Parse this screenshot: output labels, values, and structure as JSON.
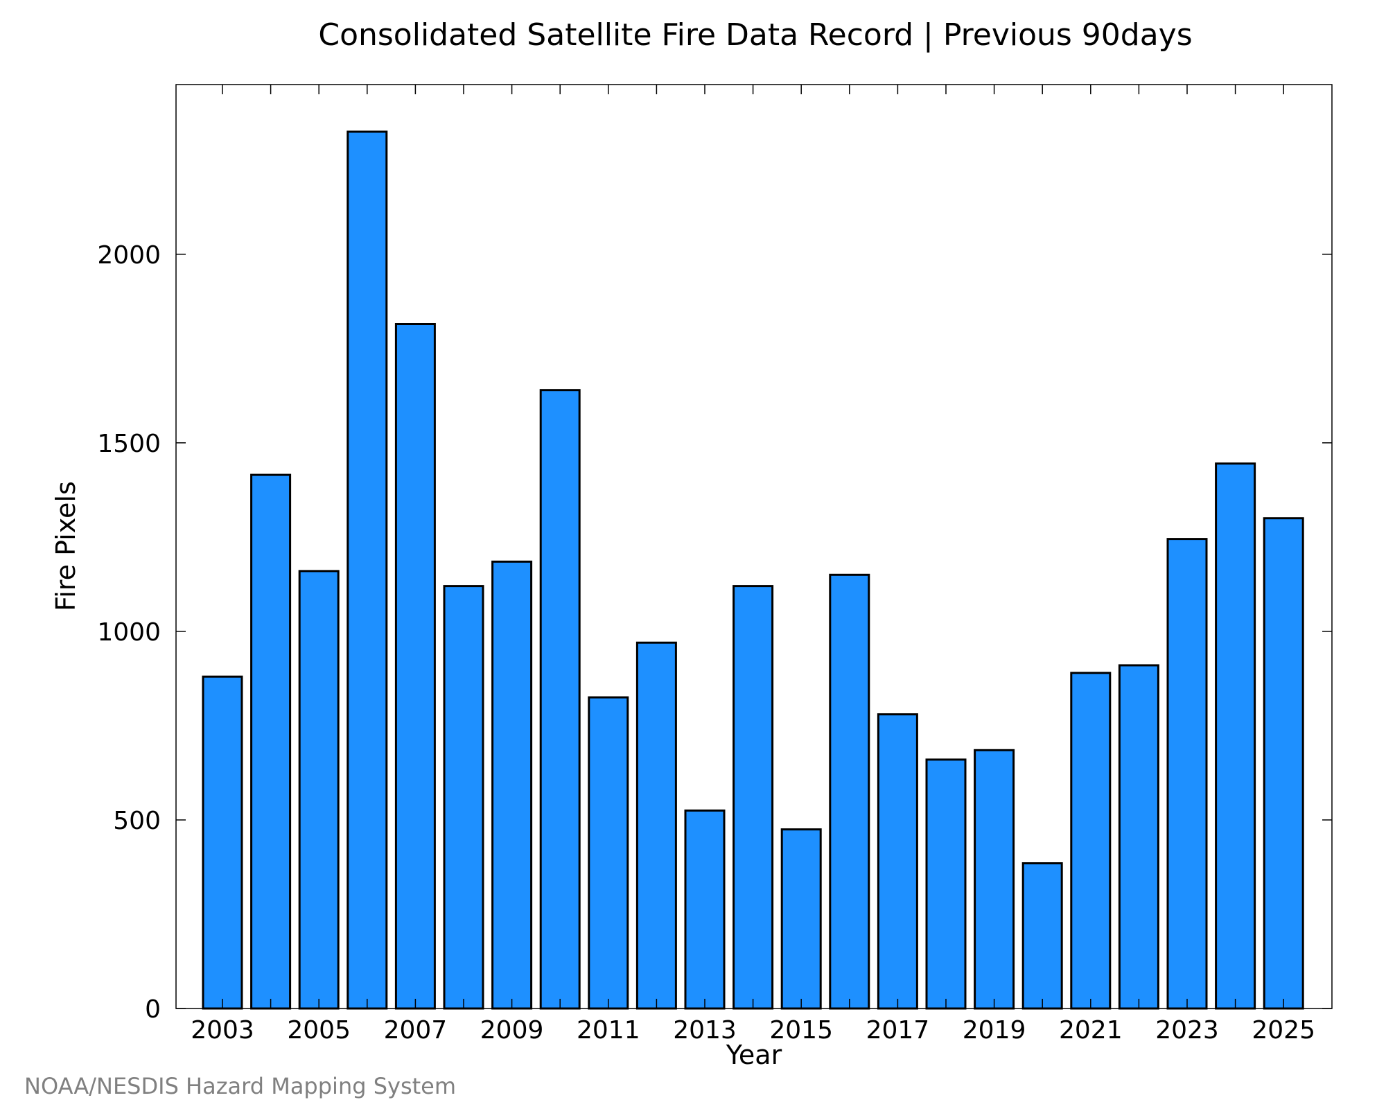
{
  "chart_data": {
    "type": "bar",
    "title": "Consolidated Satellite Fire Data Record | Previous 90days",
    "xlabel": "Year",
    "ylabel": "Fire Pixels",
    "categories": [
      "2003",
      "2004",
      "2005",
      "2006",
      "2007",
      "2008",
      "2009",
      "2010",
      "2011",
      "2012",
      "2013",
      "2014",
      "2015",
      "2016",
      "2017",
      "2018",
      "2019",
      "2020",
      "2021",
      "2022",
      "2023",
      "2024",
      "2025"
    ],
    "values": [
      880,
      1415,
      1160,
      2325,
      1815,
      1120,
      1185,
      1640,
      825,
      970,
      525,
      1120,
      475,
      1150,
      780,
      660,
      685,
      385,
      890,
      910,
      1245,
      1445,
      1300
    ],
    "x_tick_labels": [
      "2003",
      "2005",
      "2007",
      "2009",
      "2011",
      "2013",
      "2015",
      "2017",
      "2019",
      "2021",
      "2023",
      "2025"
    ],
    "y_ticks": [
      0,
      500,
      1000,
      1500,
      2000
    ],
    "ylim": [
      0,
      2450
    ],
    "bar_color": "#1e90ff",
    "grid": false,
    "legend": "none"
  },
  "credit": "NOAA/NESDIS Hazard Mapping System"
}
